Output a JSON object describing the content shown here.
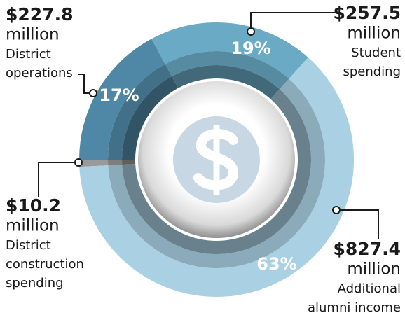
{
  "chart_data": {
    "type": "donut",
    "unit": "million",
    "categories": [
      [
        "District",
        "construction",
        "spending"
      ],
      [
        "District",
        "operations"
      ],
      [
        "Student",
        "spending"
      ],
      [
        "Additional",
        "alumni income"
      ]
    ],
    "values": [
      10.2,
      227.8,
      257.5,
      827.4
    ],
    "value_labels": [
      "$10.2",
      "$227.8",
      "$257.5",
      "$827.4"
    ],
    "percents": [
      null,
      17,
      19,
      63
    ],
    "percent_labels": [
      null,
      "17%",
      "19%",
      "63%"
    ],
    "colors": [
      "#9a9a9a",
      "#4f88a6",
      "#6aaac4",
      "#a9d0e3"
    ]
  }
}
